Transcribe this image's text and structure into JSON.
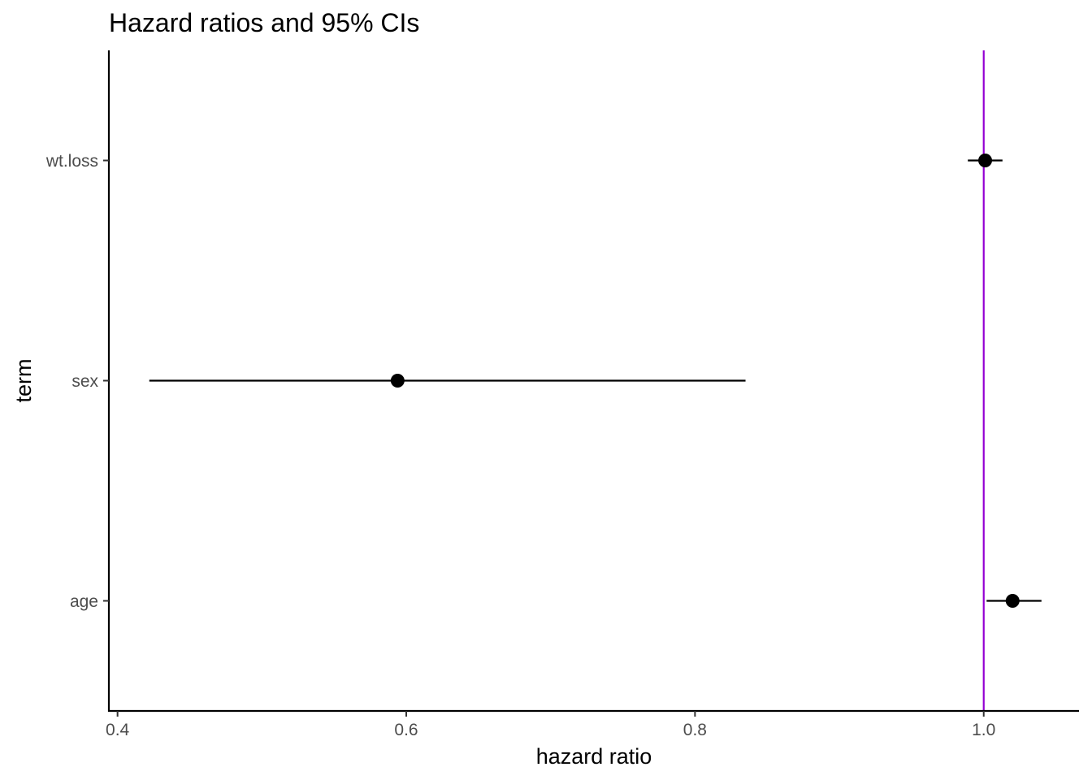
{
  "chart_data": {
    "type": "scatter",
    "title": "Hazard ratios and 95% CIs",
    "xlabel": "hazard ratio",
    "ylabel": "term",
    "xlim": [
      0.394,
      1.066
    ],
    "x_ticks": [
      0.4,
      0.6,
      0.8,
      1.0
    ],
    "x_tick_labels": [
      "0.4",
      "0.6",
      "0.8",
      "1.0"
    ],
    "categories": [
      "wt.loss",
      "sex",
      "age"
    ],
    "series": [
      {
        "points": [
          {
            "term": "wt.loss",
            "estimate": 1.001,
            "conf_low": 0.989,
            "conf_high": 1.013
          },
          {
            "term": "sex",
            "estimate": 0.594,
            "conf_low": 0.422,
            "conf_high": 0.835
          },
          {
            "term": "age",
            "estimate": 1.02,
            "conf_low": 1.002,
            "conf_high": 1.04
          }
        ]
      }
    ],
    "reference_line": {
      "x": 1.0,
      "color": "#9400d3"
    },
    "point_color": "#000000",
    "grid": false,
    "legend": "none"
  }
}
